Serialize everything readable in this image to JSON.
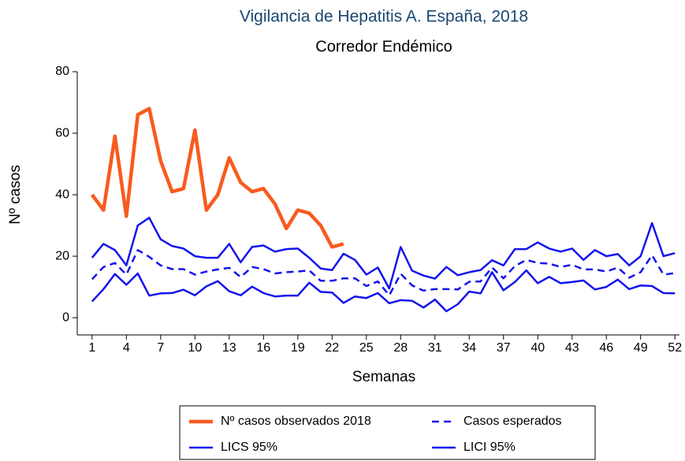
{
  "chart_data": {
    "type": "line",
    "title": "Vigilancia de Hepatitis A. España, 2018",
    "subtitle": "Corredor Endémico",
    "x_label": "Semanas",
    "y_label": "Nº casos",
    "x": [
      1,
      2,
      3,
      4,
      5,
      6,
      7,
      8,
      9,
      10,
      11,
      12,
      13,
      14,
      15,
      16,
      17,
      18,
      19,
      20,
      21,
      22,
      23,
      24,
      25,
      26,
      27,
      28,
      29,
      30,
      31,
      32,
      33,
      34,
      35,
      36,
      37,
      38,
      39,
      40,
      41,
      42,
      43,
      44,
      45,
      46,
      47,
      48,
      49,
      50,
      51,
      52
    ],
    "xlim": [
      -0.3,
      52.4
    ],
    "xticks": [
      1,
      4,
      7,
      10,
      13,
      16,
      19,
      22,
      25,
      28,
      31,
      34,
      37,
      40,
      43,
      46,
      49,
      52
    ],
    "ylim": [
      -5.6,
      80
    ],
    "yticks": [
      0,
      20,
      40,
      60,
      80
    ],
    "grid": false,
    "legend": "bottom",
    "series": [
      {
        "name": "Nº casos observados 2018",
        "color": "#f95a1e",
        "line_width": 4.5,
        "dashed": false,
        "values": [
          40,
          35,
          59,
          33,
          66,
          68,
          51,
          41,
          42,
          61,
          35,
          40,
          52,
          44,
          41,
          42,
          37,
          29,
          35,
          34,
          30,
          23,
          24,
          null,
          null,
          null,
          null,
          null,
          null,
          null,
          null,
          null,
          null,
          null,
          null,
          null,
          null,
          null,
          null,
          null,
          null,
          null,
          null,
          null,
          null,
          null,
          null,
          null,
          null,
          null,
          null,
          null
        ]
      },
      {
        "name": "Casos esperados",
        "color": "#1414ee",
        "line_width": 2.5,
        "dashed": true,
        "values": [
          12.5,
          16.5,
          17.8,
          14,
          22,
          19.8,
          17,
          15.8,
          15.8,
          14,
          15,
          15.7,
          16.2,
          13.2,
          16.5,
          15.8,
          14.4,
          14.8,
          15,
          15.4,
          12,
          12,
          12.8,
          12.8,
          10.3,
          11.8,
          7.3,
          14.3,
          10.5,
          8.8,
          9.3,
          9.3,
          9.2,
          11.7,
          11.8,
          16.3,
          12.8,
          16.8,
          18.8,
          17.8,
          17.6,
          16.5,
          17.2,
          15.7,
          15.7,
          15,
          16.3,
          13,
          14.8,
          20.3,
          14,
          14.5
        ]
      },
      {
        "name": "LICS 95%",
        "color": "#1414ee",
        "line_width": 2.5,
        "dashed": false,
        "values": [
          19.5,
          24,
          22,
          17,
          30,
          32.5,
          25.5,
          23.3,
          22.5,
          20,
          19.5,
          19.5,
          24,
          18,
          23,
          23.5,
          21.5,
          22.3,
          22.5,
          19.5,
          16,
          15.5,
          20.8,
          18.8,
          14,
          16.3,
          9.5,
          23,
          15.3,
          13.7,
          12.7,
          16.5,
          13.8,
          14.8,
          15.5,
          18.7,
          17,
          22.3,
          22.3,
          24.5,
          22.5,
          21.5,
          22.5,
          18.8,
          22,
          20,
          20.7,
          17,
          20,
          30.8,
          20,
          21
        ]
      },
      {
        "name": "LICI 95%",
        "color": "#1414ee",
        "line_width": 2.5,
        "dashed": false,
        "values": [
          5.3,
          9.3,
          14.2,
          10.7,
          14.4,
          7.2,
          7.9,
          8,
          9.1,
          7.3,
          10.2,
          11.9,
          8.6,
          7.3,
          10.1,
          8,
          6.9,
          7.2,
          7.2,
          11.4,
          8.4,
          8.2,
          4.8,
          6.9,
          6.4,
          8,
          4.7,
          5.7,
          5.5,
          3.3,
          5.9,
          2.1,
          4.4,
          8.5,
          7.9,
          14.8,
          8.9,
          11.6,
          15.4,
          11.2,
          13.3,
          11.2,
          11.6,
          12.1,
          9.2,
          10,
          12.4,
          9.3,
          10.5,
          10.3,
          8,
          7.9
        ]
      }
    ]
  }
}
